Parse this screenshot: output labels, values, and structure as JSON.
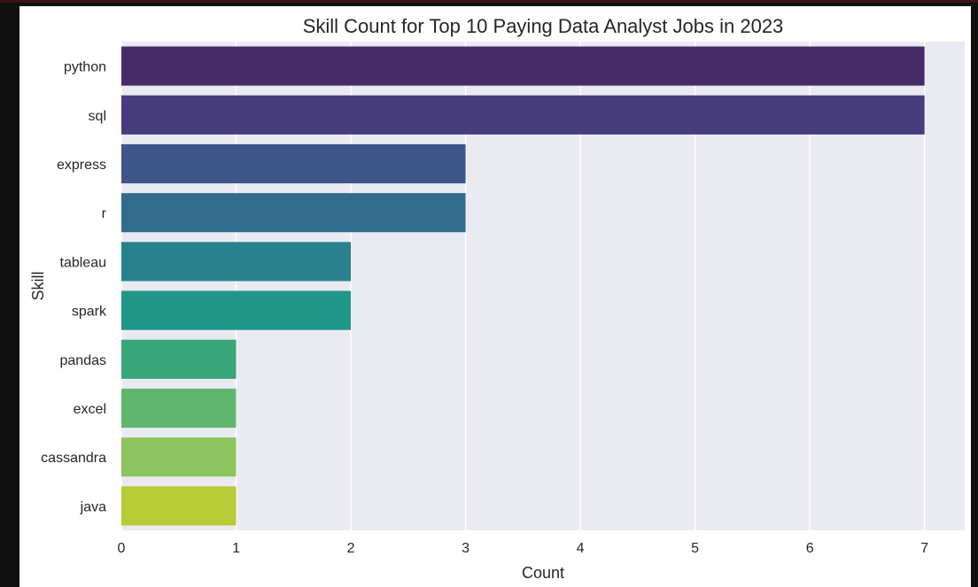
{
  "chart_data": {
    "type": "bar",
    "orientation": "horizontal",
    "title": "Skill Count for Top 10 Paying Data Analyst Jobs in 2023",
    "xlabel": "Count",
    "ylabel": "Skill",
    "categories": [
      "python",
      "sql",
      "express",
      "r",
      "tableau",
      "spark",
      "pandas",
      "excel",
      "cassandra",
      "java"
    ],
    "values": [
      7,
      7,
      3,
      3,
      2,
      2,
      1,
      1,
      1,
      1
    ],
    "colors": [
      "#472a68",
      "#473d7c",
      "#3e5589",
      "#326b8d",
      "#29818e",
      "#21968a",
      "#38a57a",
      "#5fb76f",
      "#8ec45e",
      "#b7cb36"
    ],
    "xlim": [
      0,
      7.35
    ],
    "xticks": [
      "0",
      "1",
      "2",
      "3",
      "4",
      "5",
      "6",
      "7"
    ],
    "grid": true,
    "grid_axis": "x",
    "legend": "none",
    "background": "#eaeaf2",
    "grid_color": "#ffffff"
  }
}
